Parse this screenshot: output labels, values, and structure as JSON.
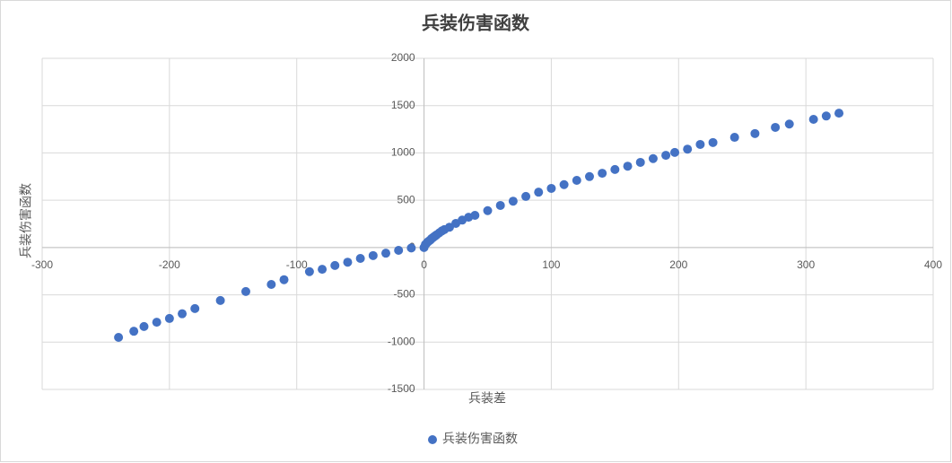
{
  "chart_data": {
    "type": "scatter",
    "title": "兵装伤害函数",
    "x_label": "兵装差",
    "y_label": "兵装伤害函数",
    "series": [
      {
        "name": "兵装伤害函数",
        "color": "#4472c4",
        "x": [
          -240,
          -228,
          -220,
          -210,
          -200,
          -190,
          -180,
          -160,
          -140,
          -120,
          -110,
          -90,
          -80,
          -70,
          -60,
          -50,
          -40,
          -30,
          -20,
          -10,
          0,
          1,
          2,
          3,
          4,
          5,
          6,
          7,
          8,
          9,
          10,
          12,
          14,
          16,
          20,
          25,
          30,
          35,
          40,
          50,
          60,
          70,
          80,
          90,
          100,
          110,
          120,
          130,
          140,
          150,
          160,
          170,
          180,
          190,
          197,
          207,
          217,
          227,
          244,
          260,
          276,
          287,
          306,
          316,
          326
        ],
        "values": [
          -950,
          -885,
          -835,
          -790,
          -750,
          -700,
          -645,
          -560,
          -465,
          -390,
          -340,
          -255,
          -230,
          -190,
          -155,
          -115,
          -85,
          -60,
          -30,
          -5,
          0,
          30,
          45,
          60,
          70,
          80,
          95,
          105,
          115,
          125,
          135,
          155,
          175,
          190,
          215,
          255,
          290,
          320,
          340,
          390,
          445,
          490,
          540,
          585,
          625,
          665,
          710,
          750,
          785,
          825,
          860,
          900,
          940,
          975,
          1005,
          1040,
          1090,
          1110,
          1165,
          1205,
          1270,
          1305,
          1355,
          1390,
          1420
        ]
      }
    ],
    "xlim": [
      -300,
      400
    ],
    "xticks": [
      -300,
      -200,
      -100,
      0,
      100,
      200,
      300,
      400
    ],
    "ylim": [
      -1500,
      2000
    ],
    "yticks": [
      -1500,
      -1000,
      -500,
      0,
      500,
      1000,
      1500,
      2000
    ],
    "grid": true,
    "legend": "bottom"
  }
}
